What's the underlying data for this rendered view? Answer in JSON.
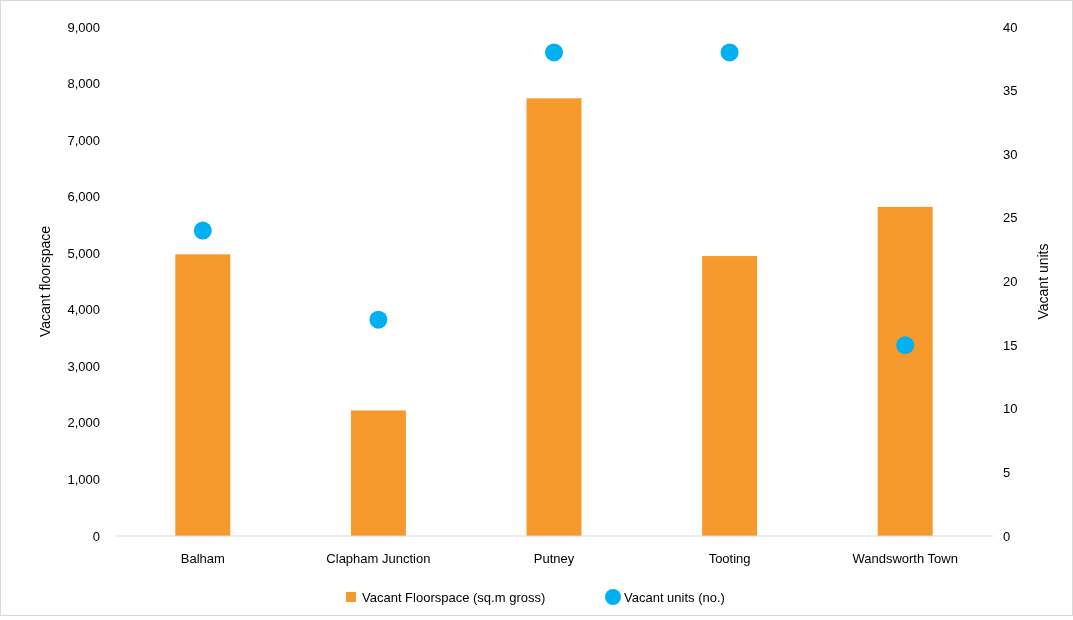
{
  "chart_data": {
    "type": "bar",
    "categories": [
      "Balham",
      "Clapham Junction",
      "Putney",
      "Tooting",
      "Wandsworth Town"
    ],
    "series": [
      {
        "name": "Vacant Floorspace (sq.m gross)",
        "color": "#f79a2e",
        "values": [
          4980,
          2220,
          7740,
          4950,
          5820
        ]
      },
      {
        "name": "Vacant units (no.)",
        "type": "scatter",
        "axis": "y2",
        "color": "#00b0f0",
        "values": [
          24,
          17,
          38,
          38,
          15
        ]
      }
    ],
    "ylabel": "Vacant floorspace",
    "y2label": "Vacant units",
    "ylim": [
      0,
      9000
    ],
    "yticks": [
      {
        "value": 0,
        "label": "0"
      },
      {
        "value": 1000,
        "label": "1,000"
      },
      {
        "value": 2000,
        "label": "2,000"
      },
      {
        "value": 3000,
        "label": "3,000"
      },
      {
        "value": 4000,
        "label": "4,000"
      },
      {
        "value": 5000,
        "label": "5,000"
      },
      {
        "value": 6000,
        "label": "6,000"
      },
      {
        "value": 7000,
        "label": "7,000"
      },
      {
        "value": 8000,
        "label": "8,000"
      },
      {
        "value": 9000,
        "label": "9,000"
      }
    ],
    "y2lim": [
      0,
      40
    ],
    "y2ticks": [
      0,
      5,
      10,
      15,
      20,
      25,
      30,
      35,
      40
    ],
    "legend": "bottom",
    "marker": "circle"
  }
}
